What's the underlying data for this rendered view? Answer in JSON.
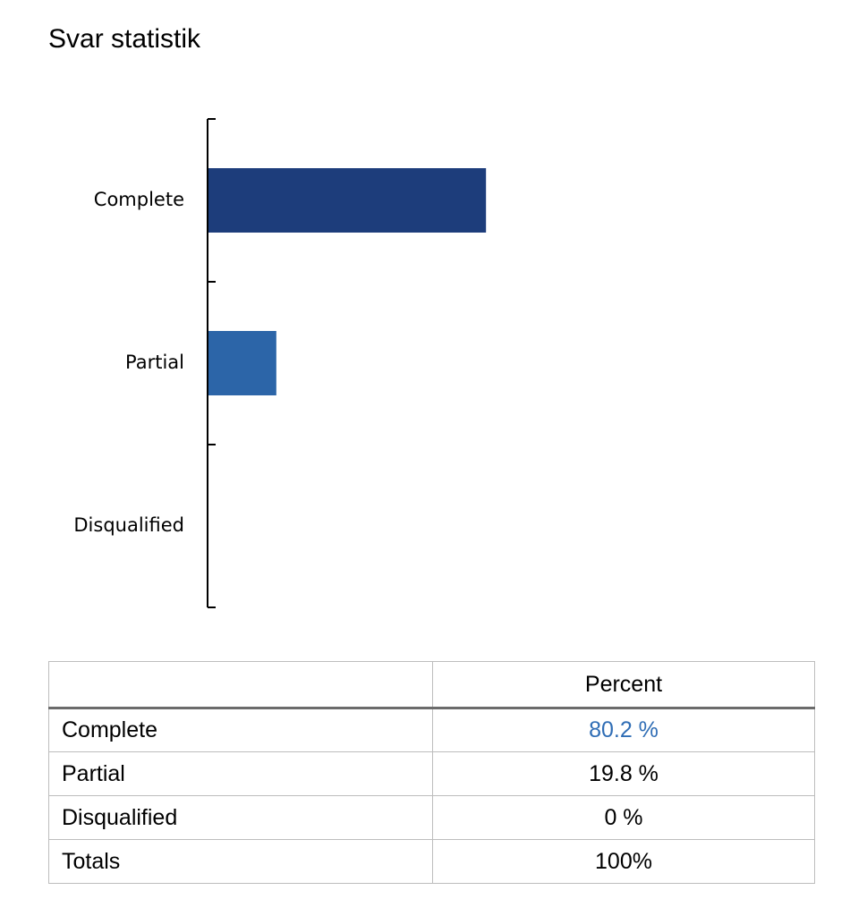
{
  "page": {
    "title": "Svar statistik"
  },
  "chart_data": {
    "type": "bar",
    "orientation": "horizontal",
    "categories": [
      "Complete",
      "Partial",
      "Disqualified"
    ],
    "values": [
      80.2,
      19.8,
      0
    ],
    "colors": [
      "#1d3d7b",
      "#2c65a8",
      "#2c65a8"
    ],
    "xlim": [
      0,
      100
    ],
    "grid": false,
    "xlabel": "",
    "ylabel": ""
  },
  "table": {
    "header": {
      "label": "",
      "value": "Percent"
    },
    "rows": [
      {
        "label": "Complete",
        "value": "80.2 %",
        "highlight": true
      },
      {
        "label": "Partial",
        "value": "19.8 %",
        "highlight": false
      },
      {
        "label": "Disqualified",
        "value": "0 %",
        "highlight": false
      },
      {
        "label": "Totals",
        "value": "100%",
        "highlight": false
      }
    ],
    "highlight_color": "#2f6db5"
  }
}
